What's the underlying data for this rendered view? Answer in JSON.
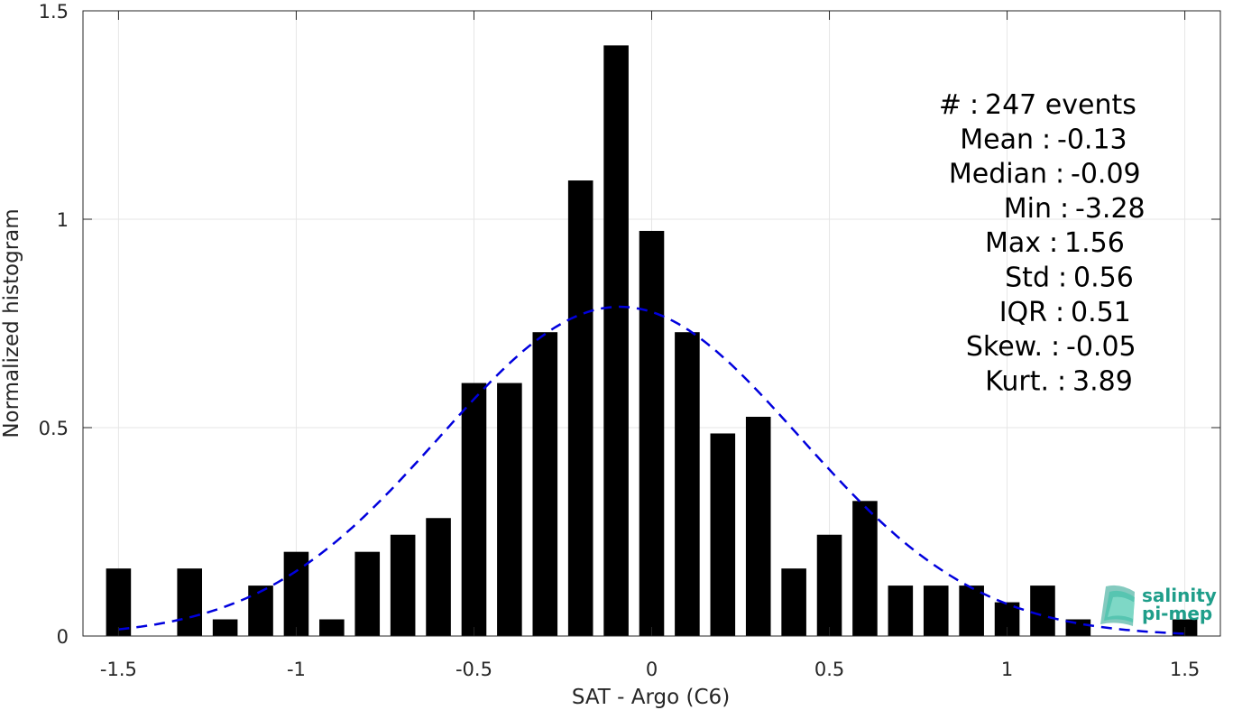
{
  "chart_data": {
    "type": "bar",
    "xlabel": "SAT - Argo (C6)",
    "ylabel": "Normalized histogram",
    "xlim": [
      -1.6,
      1.6
    ],
    "ylim": [
      0,
      1.5
    ],
    "x_ticks": [
      -1.5,
      -1,
      -0.5,
      0,
      0.5,
      1,
      1.5
    ],
    "x_tick_labels": [
      "-1.5",
      "-1",
      "-0.5",
      "0",
      "0.5",
      "1",
      "1.5"
    ],
    "y_ticks": [
      0,
      0.5,
      1,
      1.5
    ],
    "y_tick_labels": [
      "0",
      "0.5",
      "1",
      "1.5"
    ],
    "grid": true,
    "bar_color": "#000000",
    "bin_width": 0.1,
    "bins": [
      {
        "x": -1.5,
        "value": 0.162
      },
      {
        "x": -1.4,
        "value": 0
      },
      {
        "x": -1.3,
        "value": 0.162
      },
      {
        "x": -1.2,
        "value": 0.04
      },
      {
        "x": -1.1,
        "value": 0.121
      },
      {
        "x": -1.0,
        "value": 0.202
      },
      {
        "x": -0.9,
        "value": 0.04
      },
      {
        "x": -0.8,
        "value": 0.202
      },
      {
        "x": -0.7,
        "value": 0.243
      },
      {
        "x": -0.6,
        "value": 0.283
      },
      {
        "x": -0.5,
        "value": 0.607
      },
      {
        "x": -0.4,
        "value": 0.607
      },
      {
        "x": -0.3,
        "value": 0.729
      },
      {
        "x": -0.2,
        "value": 1.093
      },
      {
        "x": -0.1,
        "value": 1.417
      },
      {
        "x": 0.0,
        "value": 0.972
      },
      {
        "x": 0.1,
        "value": 0.729
      },
      {
        "x": 0.2,
        "value": 0.486
      },
      {
        "x": 0.3,
        "value": 0.526
      },
      {
        "x": 0.4,
        "value": 0.162
      },
      {
        "x": 0.5,
        "value": 0.243
      },
      {
        "x": 0.6,
        "value": 0.324
      },
      {
        "x": 0.7,
        "value": 0.121
      },
      {
        "x": 0.8,
        "value": 0.121
      },
      {
        "x": 0.9,
        "value": 0.121
      },
      {
        "x": 1.0,
        "value": 0.081
      },
      {
        "x": 1.1,
        "value": 0.121
      },
      {
        "x": 1.2,
        "value": 0.04
      },
      {
        "x": 1.3,
        "value": 0
      },
      {
        "x": 1.4,
        "value": 0
      },
      {
        "x": 1.5,
        "value": 0.04
      }
    ],
    "fit_curve": {
      "type": "gaussian",
      "mean": -0.09,
      "std": 0.505,
      "x_range": [
        -1.5,
        1.5
      ],
      "color": "#0000dd",
      "style": "dashed"
    },
    "stats": [
      {
        "key": "#",
        "sep": ":",
        "value": "247 events"
      },
      {
        "key": "Mean",
        "sep": ":",
        "value": "-0.13"
      },
      {
        "key": "Median",
        "sep": ":",
        "value": "-0.09"
      },
      {
        "key": "Min",
        "sep": ":",
        "value": "-3.28"
      },
      {
        "key": "Max",
        "sep": ":",
        "value": "1.56"
      },
      {
        "key": "Std",
        "sep": ":",
        "value": "0.56"
      },
      {
        "key": "IQR",
        "sep": ":",
        "value": "0.51"
      },
      {
        "key": "Skew.",
        "sep": ":",
        "value": "-0.05"
      },
      {
        "key": "Kurt.",
        "sep": ":",
        "value": "3.89"
      }
    ]
  },
  "logo": {
    "line1": "salinity",
    "line2": "pi-mep",
    "color": "#1f9e8a"
  }
}
